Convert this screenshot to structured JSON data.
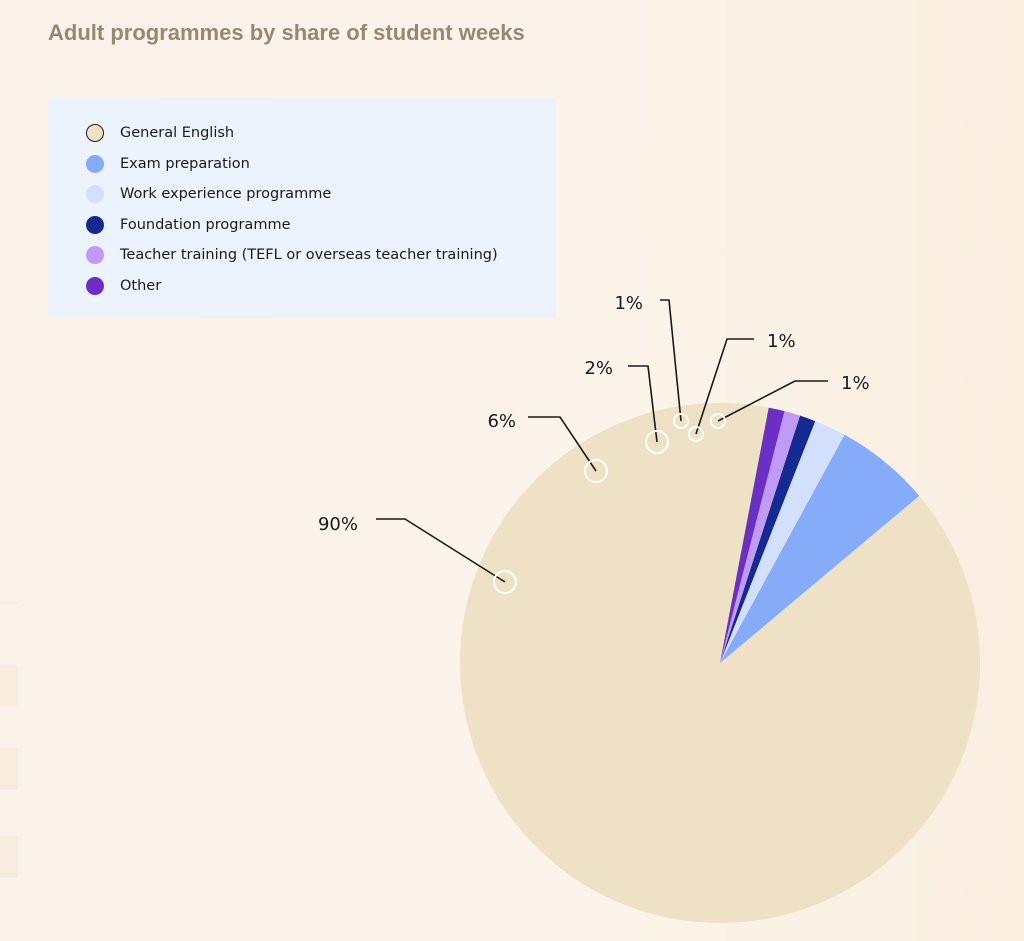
{
  "title": "Adult programmes by share of student weeks",
  "chart_data": {
    "type": "pie",
    "title": "Adult programmes by share of student weeks",
    "legend_position": "top-left",
    "slices": [
      {
        "name": "General English",
        "value": 90,
        "label": "90%",
        "color": "#eee1c6"
      },
      {
        "name": "Exam preparation",
        "value": 6,
        "label": "6%",
        "color": "#86abf8"
      },
      {
        "name": "Work experience programme",
        "value": 2,
        "label": "2%",
        "color": "#d3e0fb"
      },
      {
        "name": "Foundation programme",
        "value": 1,
        "label": "1%",
        "color": "#142a90"
      },
      {
        "name": "Teacher training (TEFL or overseas teacher training)",
        "value": 1,
        "label": "1%",
        "color": "#c09bf5"
      },
      {
        "name": "Other",
        "value": 1,
        "label": "1%",
        "color": "#6a2fc4"
      }
    ]
  }
}
